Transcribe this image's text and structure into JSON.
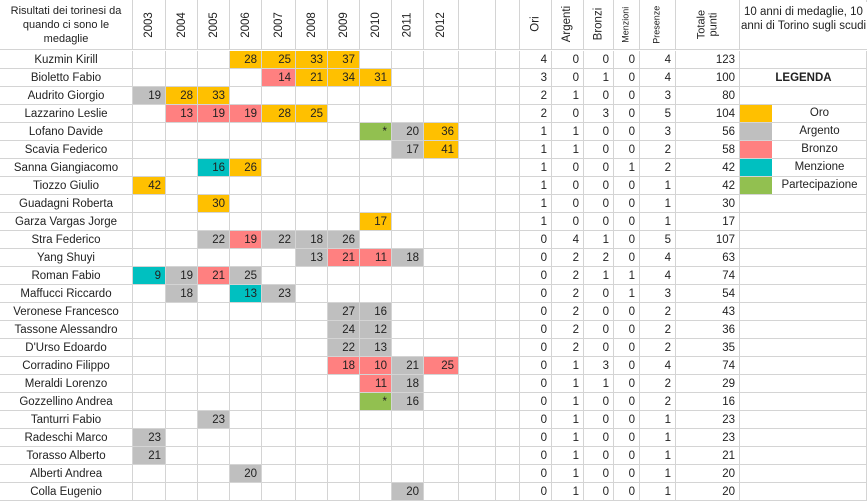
{
  "header": {
    "title": "Risultati dei torinesi da quando ci sono le medaglie",
    "years": [
      "2003",
      "2004",
      "2005",
      "2006",
      "2007",
      "2008",
      "2009",
      "2010",
      "2011",
      "2012"
    ],
    "stats": [
      "Ori",
      "Argenti",
      "Bronzi",
      "Menzioni",
      "Presenze",
      "Totale punti"
    ]
  },
  "colors": {
    "oro": "#ffc000",
    "argento": "#bfbfbf",
    "bronzo": "#ff8080",
    "menzione": "#00c0c0",
    "partecipazione": "#92c050"
  },
  "rows": [
    {
      "name": "Kuzmin Kirill",
      "cells": [
        null,
        null,
        null,
        [
          "28",
          "oro"
        ],
        [
          "25",
          "oro"
        ],
        [
          "33",
          "oro"
        ],
        [
          "37",
          "oro"
        ],
        null,
        null,
        null
      ],
      "stats": [
        "4",
        "0",
        "0",
        "0",
        "4",
        "123"
      ]
    },
    {
      "name": "Bioletto Fabio",
      "cells": [
        null,
        null,
        null,
        null,
        [
          "14",
          "bronzo"
        ],
        [
          "21",
          "oro"
        ],
        [
          "34",
          "oro"
        ],
        [
          "31",
          "oro"
        ],
        null,
        null
      ],
      "stats": [
        "3",
        "0",
        "1",
        "0",
        "4",
        "100"
      ]
    },
    {
      "name": "Audrito Giorgio",
      "cells": [
        [
          "19",
          "argento"
        ],
        [
          "28",
          "oro"
        ],
        [
          "33",
          "oro"
        ],
        null,
        null,
        null,
        null,
        null,
        null,
        null
      ],
      "stats": [
        "2",
        "1",
        "0",
        "0",
        "3",
        "80"
      ]
    },
    {
      "name": "Lazzarino Leslie",
      "cells": [
        null,
        [
          "13",
          "bronzo"
        ],
        [
          "19",
          "bronzo"
        ],
        [
          "19",
          "bronzo"
        ],
        [
          "28",
          "oro"
        ],
        [
          "25",
          "oro"
        ],
        null,
        null,
        null,
        null
      ],
      "stats": [
        "2",
        "0",
        "3",
        "0",
        "5",
        "104"
      ]
    },
    {
      "name": "Lofano Davide",
      "cells": [
        null,
        null,
        null,
        null,
        null,
        null,
        null,
        [
          "*",
          "partecipazione"
        ],
        [
          "20",
          "argento"
        ],
        [
          "36",
          "oro"
        ]
      ],
      "stats": [
        "1",
        "1",
        "0",
        "0",
        "3",
        "56"
      ]
    },
    {
      "name": "Scavia Federico",
      "cells": [
        null,
        null,
        null,
        null,
        null,
        null,
        null,
        null,
        [
          "17",
          "argento"
        ],
        [
          "41",
          "oro"
        ]
      ],
      "stats": [
        "1",
        "1",
        "0",
        "0",
        "2",
        "58"
      ]
    },
    {
      "name": "Sanna Giangiacomo",
      "cells": [
        null,
        null,
        [
          "16",
          "menzione"
        ],
        [
          "26",
          "oro"
        ],
        null,
        null,
        null,
        null,
        null,
        null
      ],
      "stats": [
        "1",
        "0",
        "0",
        "1",
        "2",
        "42"
      ]
    },
    {
      "name": "Tiozzo Giulio",
      "cells": [
        [
          "42",
          "oro"
        ],
        null,
        null,
        null,
        null,
        null,
        null,
        null,
        null,
        null
      ],
      "stats": [
        "1",
        "0",
        "0",
        "0",
        "1",
        "42"
      ]
    },
    {
      "name": "Guadagni Roberta",
      "cells": [
        null,
        null,
        [
          "30",
          "oro"
        ],
        null,
        null,
        null,
        null,
        null,
        null,
        null
      ],
      "stats": [
        "1",
        "0",
        "0",
        "0",
        "1",
        "30"
      ]
    },
    {
      "name": "Garza Vargas Jorge",
      "cells": [
        null,
        null,
        null,
        null,
        null,
        null,
        null,
        [
          "17",
          "oro"
        ],
        null,
        null
      ],
      "stats": [
        "1",
        "0",
        "0",
        "0",
        "1",
        "17"
      ]
    },
    {
      "name": "Stra Federico",
      "cells": [
        null,
        null,
        [
          "22",
          "argento"
        ],
        [
          "19",
          "bronzo"
        ],
        [
          "22",
          "argento"
        ],
        [
          "18",
          "argento"
        ],
        [
          "26",
          "argento"
        ],
        null,
        null,
        null
      ],
      "stats": [
        "0",
        "4",
        "1",
        "0",
        "5",
        "107"
      ]
    },
    {
      "name": "Yang Shuyi",
      "cells": [
        null,
        null,
        null,
        null,
        null,
        [
          "13",
          "argento"
        ],
        [
          "21",
          "bronzo"
        ],
        [
          "11",
          "bronzo"
        ],
        [
          "18",
          "argento"
        ],
        null
      ],
      "stats": [
        "0",
        "2",
        "2",
        "0",
        "4",
        "63"
      ]
    },
    {
      "name": "Roman Fabio",
      "cells": [
        [
          "9",
          "menzione"
        ],
        [
          "19",
          "argento"
        ],
        [
          "21",
          "bronzo"
        ],
        [
          "25",
          "argento"
        ],
        null,
        null,
        null,
        null,
        null,
        null
      ],
      "stats": [
        "0",
        "2",
        "1",
        "1",
        "4",
        "74"
      ]
    },
    {
      "name": "Maffucci Riccardo",
      "cells": [
        null,
        [
          "18",
          "argento"
        ],
        null,
        [
          "13",
          "menzione"
        ],
        [
          "23",
          "argento"
        ],
        null,
        null,
        null,
        null,
        null
      ],
      "stats": [
        "0",
        "2",
        "0",
        "1",
        "3",
        "54"
      ]
    },
    {
      "name": "Veronese Francesco",
      "cells": [
        null,
        null,
        null,
        null,
        null,
        null,
        [
          "27",
          "argento"
        ],
        [
          "16",
          "argento"
        ],
        null,
        null
      ],
      "stats": [
        "0",
        "2",
        "0",
        "0",
        "2",
        "43"
      ]
    },
    {
      "name": "Tassone Alessandro",
      "cells": [
        null,
        null,
        null,
        null,
        null,
        null,
        [
          "24",
          "argento"
        ],
        [
          "12",
          "argento"
        ],
        null,
        null
      ],
      "stats": [
        "0",
        "2",
        "0",
        "0",
        "2",
        "36"
      ]
    },
    {
      "name": "D'Urso Edoardo",
      "cells": [
        null,
        null,
        null,
        null,
        null,
        null,
        [
          "22",
          "argento"
        ],
        [
          "13",
          "argento"
        ],
        null,
        null
      ],
      "stats": [
        "0",
        "2",
        "0",
        "0",
        "2",
        "35"
      ]
    },
    {
      "name": "Corradino Filippo",
      "cells": [
        null,
        null,
        null,
        null,
        null,
        null,
        [
          "18",
          "bronzo"
        ],
        [
          "10",
          "bronzo"
        ],
        [
          "21",
          "argento"
        ],
        [
          "25",
          "bronzo"
        ]
      ],
      "stats": [
        "0",
        "1",
        "3",
        "0",
        "4",
        "74"
      ]
    },
    {
      "name": "Meraldi Lorenzo",
      "cells": [
        null,
        null,
        null,
        null,
        null,
        null,
        null,
        [
          "11",
          "bronzo"
        ],
        [
          "18",
          "argento"
        ],
        null
      ],
      "stats": [
        "0",
        "1",
        "1",
        "0",
        "2",
        "29"
      ]
    },
    {
      "name": "Gozzellino Andrea",
      "cells": [
        null,
        null,
        null,
        null,
        null,
        null,
        null,
        [
          "*",
          "partecipazione"
        ],
        [
          "16",
          "argento"
        ],
        null
      ],
      "stats": [
        "0",
        "1",
        "0",
        "0",
        "2",
        "16"
      ]
    },
    {
      "name": "Tanturri Fabio",
      "cells": [
        null,
        null,
        [
          "23",
          "argento"
        ],
        null,
        null,
        null,
        null,
        null,
        null,
        null
      ],
      "stats": [
        "0",
        "1",
        "0",
        "0",
        "1",
        "23"
      ]
    },
    {
      "name": "Radeschi Marco",
      "cells": [
        [
          "23",
          "argento"
        ],
        null,
        null,
        null,
        null,
        null,
        null,
        null,
        null,
        null
      ],
      "stats": [
        "0",
        "1",
        "0",
        "0",
        "1",
        "23"
      ]
    },
    {
      "name": "Torasso Alberto",
      "cells": [
        [
          "21",
          "argento"
        ],
        null,
        null,
        null,
        null,
        null,
        null,
        null,
        null,
        null
      ],
      "stats": [
        "0",
        "1",
        "0",
        "0",
        "1",
        "21"
      ]
    },
    {
      "name": "Alberti Andrea",
      "cells": [
        null,
        null,
        null,
        [
          "20",
          "argento"
        ],
        null,
        null,
        null,
        null,
        null,
        null
      ],
      "stats": [
        "0",
        "1",
        "0",
        "0",
        "1",
        "20"
      ]
    },
    {
      "name": "Colla Eugenio",
      "cells": [
        null,
        null,
        null,
        null,
        null,
        null,
        null,
        null,
        [
          "20",
          "argento"
        ],
        null
      ],
      "stats": [
        "0",
        "1",
        "0",
        "0",
        "1",
        "20"
      ]
    }
  ],
  "side": {
    "heading": "10 anni di medaglie, 10 anni di Torino sugli scudi",
    "legend_title": "LEGENDA",
    "legend": [
      {
        "label": "Oro",
        "color": "oro"
      },
      {
        "label": "Argento",
        "color": "argento"
      },
      {
        "label": "Bronzo",
        "color": "bronzo"
      },
      {
        "label": "Menzione",
        "color": "menzione"
      },
      {
        "label": "Partecipazione",
        "color": "partecipazione"
      }
    ]
  }
}
